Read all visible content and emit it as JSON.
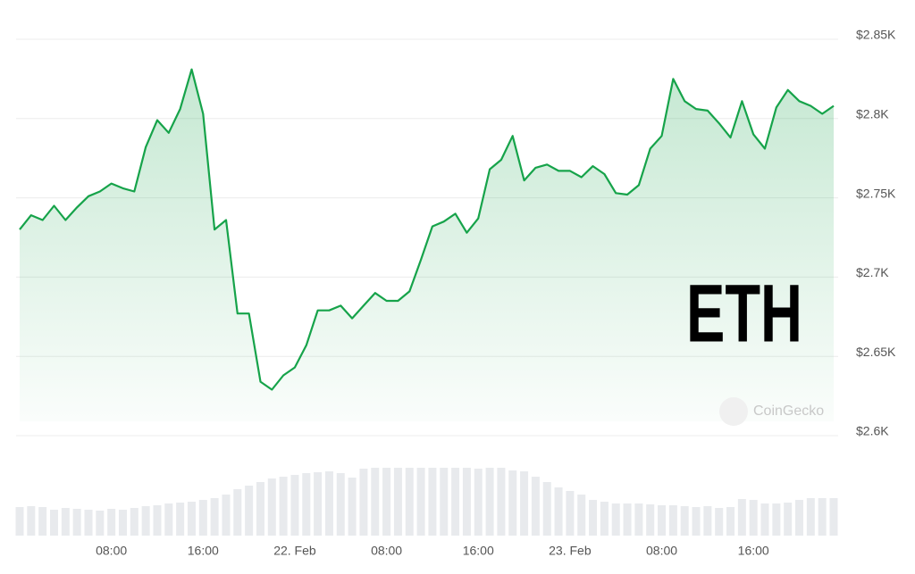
{
  "chart_data": {
    "type": "line",
    "title": "ETH",
    "watermark": "CoinGecko",
    "color": "#16a34a",
    "values": [
      2730,
      2739,
      2736,
      2745,
      2736,
      2744,
      2751,
      2754,
      2759,
      2756,
      2754,
      2782,
      2799,
      2791,
      2806,
      2831,
      2803,
      2730,
      2736,
      2677,
      2677,
      2634,
      2629,
      2638,
      2643,
      2657,
      2679,
      2679,
      2682,
      2674,
      2682,
      2690,
      2685,
      2685,
      2691,
      2711,
      2732,
      2735,
      2740,
      2728,
      2737,
      2768,
      2774,
      2789,
      2761,
      2769,
      2771,
      2767,
      2767,
      2763,
      2770,
      2765,
      2753,
      2752,
      2758,
      2781,
      2789,
      2825,
      2811,
      2806,
      2805,
      2797,
      2788,
      2811,
      2790,
      2781,
      2807,
      2818,
      2811,
      2808,
      2803,
      2808
    ],
    "volumes": [
      32,
      33,
      32,
      29,
      31,
      30,
      29,
      28,
      30,
      29,
      31,
      33,
      34,
      36,
      37,
      38,
      40,
      42,
      46,
      52,
      56,
      60,
      64,
      66,
      68,
      70,
      71,
      72,
      70,
      65,
      75,
      76,
      76,
      76,
      76,
      76,
      76,
      76,
      76,
      76,
      75,
      76,
      76,
      73,
      72,
      66,
      60,
      54,
      50,
      46,
      40,
      38,
      36,
      36,
      36,
      35,
      34,
      34,
      33,
      32,
      33,
      31,
      32,
      41,
      40,
      36,
      36,
      37,
      40,
      42,
      42,
      42
    ],
    "ylim": [
      2600,
      2850
    ],
    "yticks": [
      {
        "value": 2850,
        "label": "$2.85K"
      },
      {
        "value": 2800,
        "label": "$2.8K"
      },
      {
        "value": 2750,
        "label": "$2.75K"
      },
      {
        "value": 2700,
        "label": "$2.7K"
      },
      {
        "value": 2650,
        "label": "$2.65K"
      },
      {
        "value": 2600,
        "label": "$2.6K"
      }
    ],
    "xlim": [
      0,
      71
    ],
    "xticks": [
      {
        "value": 8,
        "label": "08:00"
      },
      {
        "value": 16,
        "label": "16:00"
      },
      {
        "value": 24,
        "label": "22. Feb"
      },
      {
        "value": 32,
        "label": "08:00"
      },
      {
        "value": 40,
        "label": "16:00"
      },
      {
        "value": 48,
        "label": "23. Feb"
      },
      {
        "value": 56,
        "label": "08:00"
      },
      {
        "value": 64,
        "label": "16:00"
      }
    ],
    "grid": true
  }
}
